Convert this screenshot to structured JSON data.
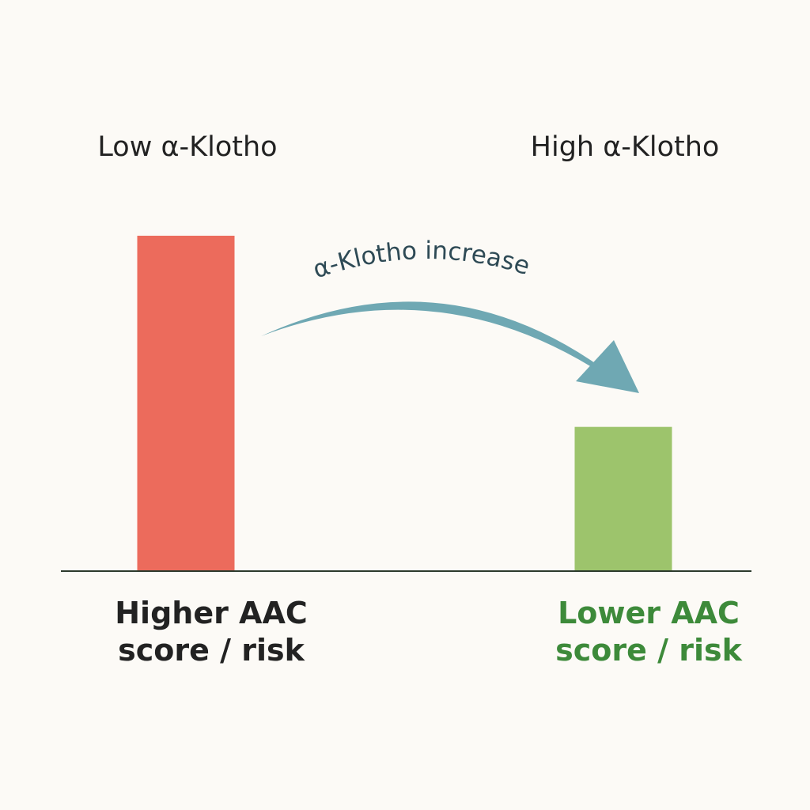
{
  "chart_data": {
    "type": "bar",
    "categories": [
      "Low α-Klotho",
      "High α-Klotho"
    ],
    "values": [
      100,
      43
    ],
    "colors": [
      "#ec6b5c",
      "#9dc46c"
    ],
    "outcome_labels": [
      [
        "Higher AAC",
        "score / risk"
      ],
      [
        "Lower AAC",
        "score / risk"
      ]
    ],
    "outcome_colors": [
      "#222222",
      "#3d8a3a"
    ],
    "arrow_label": "α-Klotho increase",
    "arrow_color": "#6fa8b3"
  }
}
